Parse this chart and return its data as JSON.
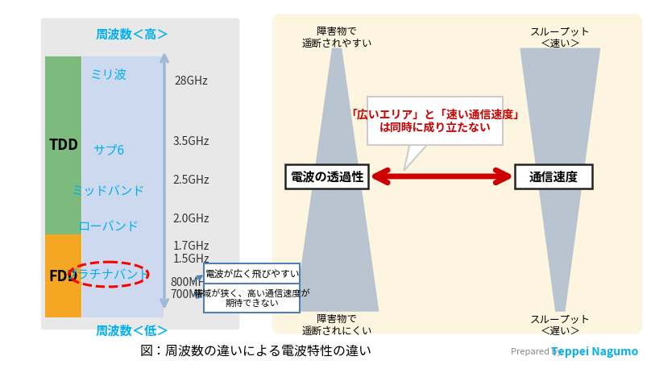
{
  "title": "図：周波数の違いによる電波特性の違い",
  "prepared_by": "Prepared by",
  "author": "Teppei Nagumo",
  "bg_color": "#ffffff",
  "left_panel_bg": "#e8e8e8",
  "band_col_bg": "#ccd9ee",
  "tdd_color": "#7dba7d",
  "fdd_color": "#f5a623",
  "right_panel_bg": "#fdf5e0",
  "freq_labels": [
    "28GHz",
    "3.5GHz",
    "2.5GHz",
    "2.0GHz",
    "1.7GHz",
    "1.5GHz",
    "800MHz",
    "700MHz"
  ],
  "band_labels": [
    "ミリ波",
    "サプ6",
    "ミッドバンド",
    "ローバンド",
    "プラチナバンド"
  ],
  "freq_high_label": "周波数＜高＞",
  "freq_low_label": "周波数＜低＞",
  "tdd_label": "TDD",
  "fdd_label": "FDD",
  "left_box1": "電波が広く飛びやすい",
  "left_box2": "帯域が狭く、高い通信速度が\n期待できない",
  "center_box": "「広いエリア」と「速い通信速度」\nは同時に成り立たない",
  "left_label1": "電波の透過性",
  "right_label1": "通信速度",
  "top_label_left": "障害物で\n遥断されやすい",
  "bottom_label_left": "障害物で\n遥断されにくい",
  "top_label_right": "スループット\n＜速い＞",
  "bottom_label_right": "スループット\n＜遅い＞",
  "cyan_color": "#00b0f0",
  "red_color": "#cc0000",
  "arrow_color": "#a0b8d8"
}
